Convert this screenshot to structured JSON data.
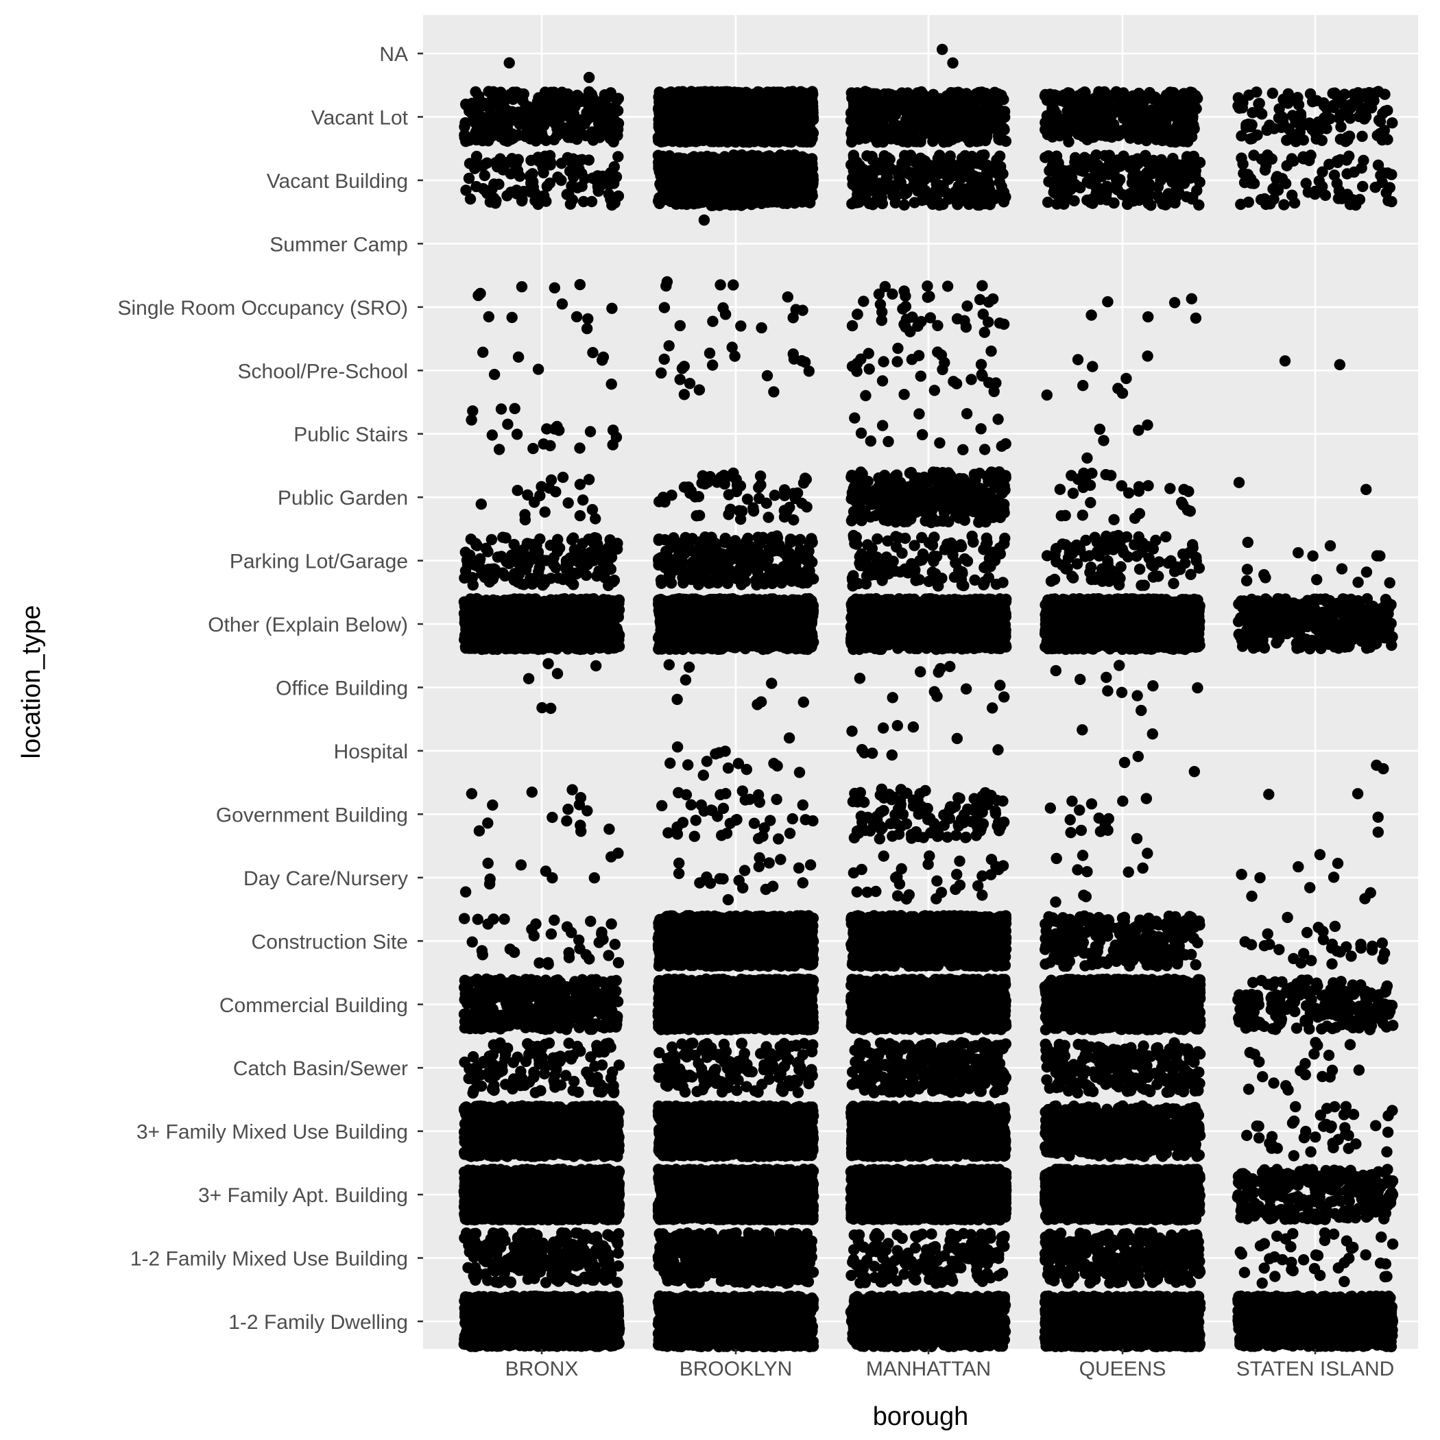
{
  "chart_data": {
    "type": "scatter",
    "subtype": "jitter",
    "xlabel": "borough",
    "ylabel": "location_type",
    "x_categories": [
      "BRONX",
      "BROOKLYN",
      "MANHATTAN",
      "QUEENS",
      "STATEN ISLAND"
    ],
    "y_categories": [
      "1-2 Family Dwelling",
      "1-2 Family Mixed Use Building",
      "3+ Family Apt. Building",
      "3+ Family Mixed Use Building",
      "Catch Basin/Sewer",
      "Commercial Building",
      "Construction Site",
      "Day Care/Nursery",
      "Government Building",
      "Hospital",
      "Office Building",
      "Other (Explain Below)",
      "Parking Lot/Garage",
      "Public Garden",
      "Public Stairs",
      "School/Pre-School",
      "Single Room Occupancy (SRO)",
      "Summer Camp",
      "Vacant Building",
      "Vacant Lot",
      "NA"
    ],
    "approx_point_counts": {
      "columns": [
        "BRONX",
        "BROOKLYN",
        "MANHATTAN",
        "QUEENS",
        "STATEN ISLAND"
      ],
      "rows": {
        "1-2 Family Dwelling": [
          1500,
          1500,
          900,
          1500,
          1200
        ],
        "1-2 Family Mixed Use Building": [
          220,
          420,
          160,
          300,
          40
        ],
        "3+ Family Apt. Building": [
          2000,
          2000,
          2000,
          1600,
          260
        ],
        "3+ Family Mixed Use Building": [
          1300,
          1500,
          1500,
          500,
          40
        ],
        "Catch Basin/Sewer": [
          120,
          150,
          350,
          220,
          20
        ],
        "Commercial Building": [
          500,
          1500,
          1500,
          1200,
          200
        ],
        "Construction Site": [
          35,
          1500,
          1500,
          260,
          30
        ],
        "Day Care/Nursery": [
          10,
          20,
          30,
          10,
          10
        ],
        "Government Building": [
          15,
          40,
          120,
          15,
          4
        ],
        "Hospital": [
          0,
          15,
          10,
          5,
          2
        ],
        "Office Building": [
          6,
          8,
          12,
          10,
          0
        ],
        "Other (Explain Below)": [
          1400,
          1500,
          1500,
          1400,
          350
        ],
        "Parking Lot/Garage": [
          150,
          260,
          120,
          100,
          15
        ],
        "Public Garden": [
          20,
          60,
          360,
          30,
          2
        ],
        "Public Stairs": [
          20,
          0,
          15,
          5,
          0
        ],
        "School/Pre-School": [
          8,
          20,
          30,
          8,
          2
        ],
        "Single Room Occupancy (SRO)": [
          12,
          15,
          40,
          6,
          0
        ],
        "Summer Camp": [
          0,
          1,
          0,
          0,
          0
        ],
        "Vacant Building": [
          120,
          800,
          260,
          220,
          80
        ],
        "Vacant Lot": [
          300,
          1500,
          450,
          350,
          140
        ],
        "NA": [
          2,
          0,
          2,
          0,
          0
        ]
      }
    },
    "grid": true,
    "legend": "none",
    "colors": {
      "panel_background": "#ebebeb",
      "grid": "#ffffff",
      "point": "#000000",
      "tick_label": "#4d4d4d",
      "axis_title": "#000000"
    }
  }
}
